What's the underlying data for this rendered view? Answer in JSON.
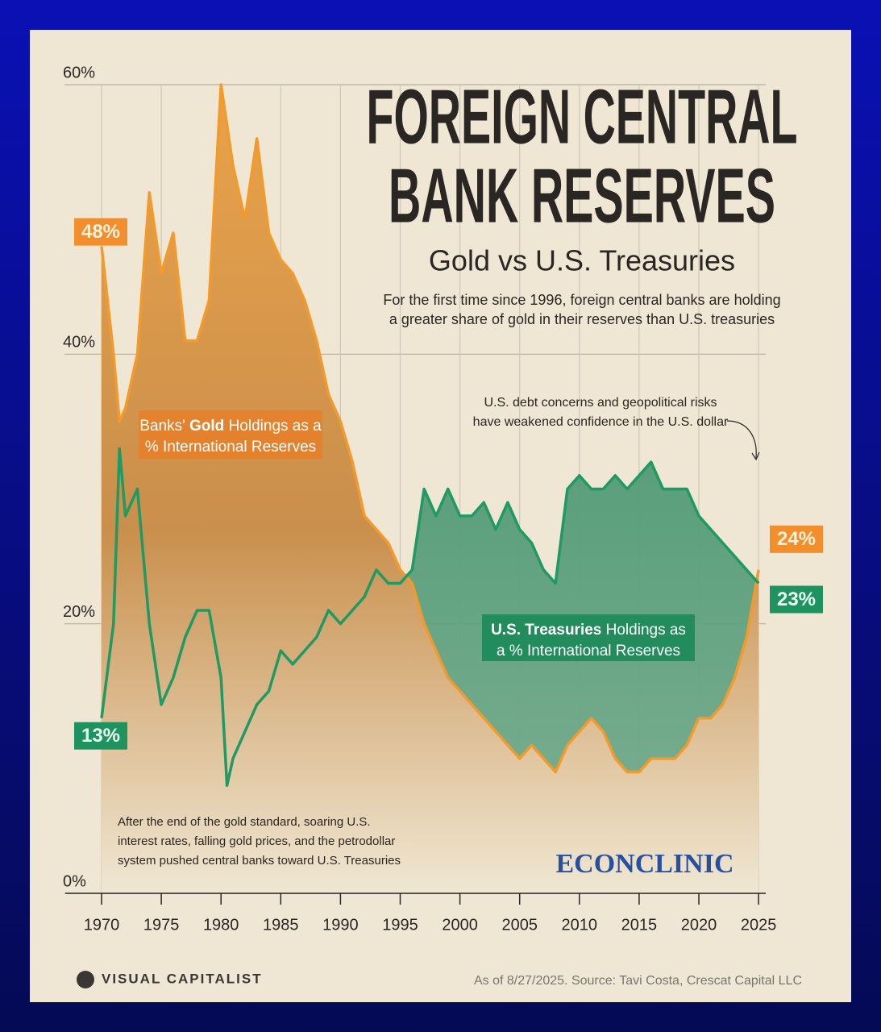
{
  "chart_data": {
    "type": "line",
    "title_lines": [
      "FOREIGN CENTRAL",
      "BANK RESERVES"
    ],
    "subtitle": "Gold vs U.S. Treasuries",
    "description_lines": [
      "For the first time since 1996, foreign central banks are holding",
      "a greater share of gold in their reserves than U.S. treasuries"
    ],
    "x": [
      1970,
      1971,
      1971.5,
      1972,
      1973,
      1974,
      1975,
      1976,
      1977,
      1978,
      1979,
      1980,
      1980.5,
      1981,
      1982,
      1983,
      1984,
      1985,
      1986,
      1987,
      1988,
      1989,
      1990,
      1991,
      1992,
      1993,
      1994,
      1995,
      1996,
      1997,
      1998,
      1999,
      2000,
      2001,
      2002,
      2003,
      2004,
      2005,
      2006,
      2007,
      2008,
      2009,
      2010,
      2011,
      2012,
      2013,
      2014,
      2015,
      2016,
      2017,
      2018,
      2019,
      2020,
      2021,
      2022,
      2023,
      2024,
      2025
    ],
    "series": [
      {
        "name": "Banks' Gold Holdings as a % International Reserves",
        "color": "#f39a2c",
        "label_parts": [
          "Banks'",
          "Gold",
          "Holdings as a",
          "% International Reserves"
        ],
        "start_label": "48%",
        "end_label": "24%",
        "values": [
          48,
          40,
          35,
          36,
          40,
          52,
          46,
          49,
          41,
          41,
          44,
          60,
          57,
          54,
          50,
          56,
          49,
          47,
          46,
          44,
          41,
          37,
          35,
          32,
          28,
          27,
          26,
          24,
          23,
          20,
          18,
          16,
          15,
          14,
          13,
          12,
          11,
          10,
          11,
          10,
          9,
          11,
          12,
          13,
          12,
          10,
          9,
          9,
          10,
          10,
          10,
          11,
          13,
          13,
          14,
          16,
          19,
          24
        ]
      },
      {
        "name": "U.S. Treasuries Holdings as a % International Reserves",
        "color": "#1f9a63",
        "label_parts": [
          "U.S. Treasuries",
          "Holdings as",
          "a % International Reserves"
        ],
        "start_label": "13%",
        "end_label": "23%",
        "values": [
          13,
          20,
          33,
          28,
          30,
          20,
          14,
          16,
          19,
          21,
          21,
          16,
          8,
          10,
          12,
          14,
          15,
          18,
          17,
          18,
          19,
          21,
          20,
          21,
          22,
          24,
          23,
          23,
          24,
          30,
          28,
          30,
          28,
          28,
          29,
          27,
          29,
          27,
          26,
          24,
          23,
          30,
          31,
          30,
          30,
          31,
          30,
          31,
          32,
          30,
          30,
          30,
          28,
          27,
          26,
          25,
          24,
          23
        ]
      }
    ],
    "xlim": [
      1970,
      2025.6
    ],
    "xticks": [
      1970,
      1975,
      1980,
      1985,
      1990,
      1995,
      2000,
      2005,
      2010,
      2015,
      2020,
      2025
    ],
    "ylim": [
      0,
      60
    ],
    "yticks": [
      {
        "value": 0,
        "label": "0%"
      },
      {
        "value": 20,
        "label": "20%"
      },
      {
        "value": 40,
        "label": "40%"
      },
      {
        "value": 60,
        "label": "60%"
      }
    ],
    "grid": true,
    "annotations": {
      "dollar": [
        "U.S. debt concerns and geopolitical risks",
        "have weakened confidence in the U.S. dollar"
      ],
      "gold_standard": [
        "After the end of the gold standard, soaring U.S.",
        "interest rates, falling gold prices, and the petrodollar",
        "system pushed central banks toward U.S. Treasuries"
      ]
    },
    "watermark": "ECONCLINIC",
    "brand": "VISUAL CAPITALIST",
    "source": "As of 8/27/2025. Source: Tavi Costa, Crescat Capital LLC"
  }
}
